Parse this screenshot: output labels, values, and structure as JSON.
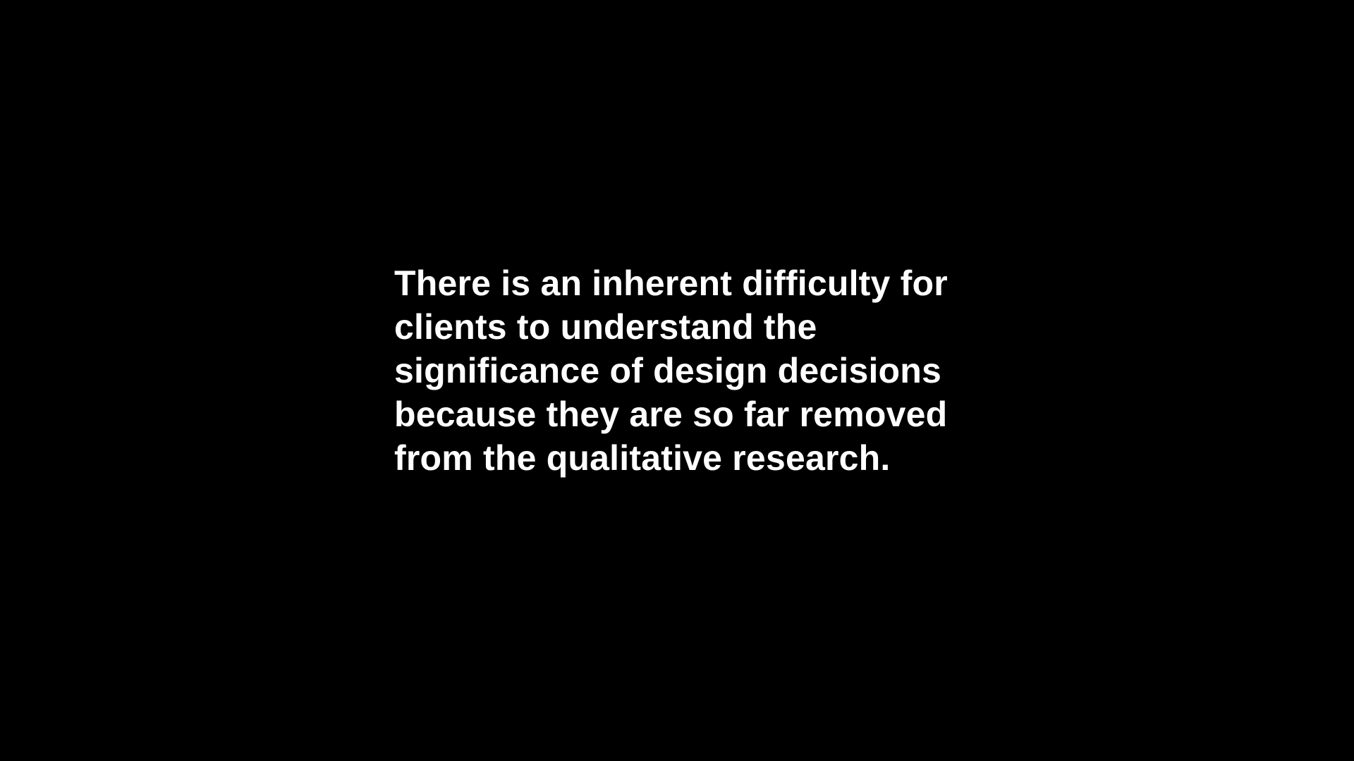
{
  "slide": {
    "background_color": "#000000",
    "text_color": "#ffffff",
    "quote_lines": [
      "There is an inherent difficulty for",
      "clients to understand the",
      "significance of design decisions",
      "because they are so far removed",
      "from the qualitative research."
    ]
  }
}
